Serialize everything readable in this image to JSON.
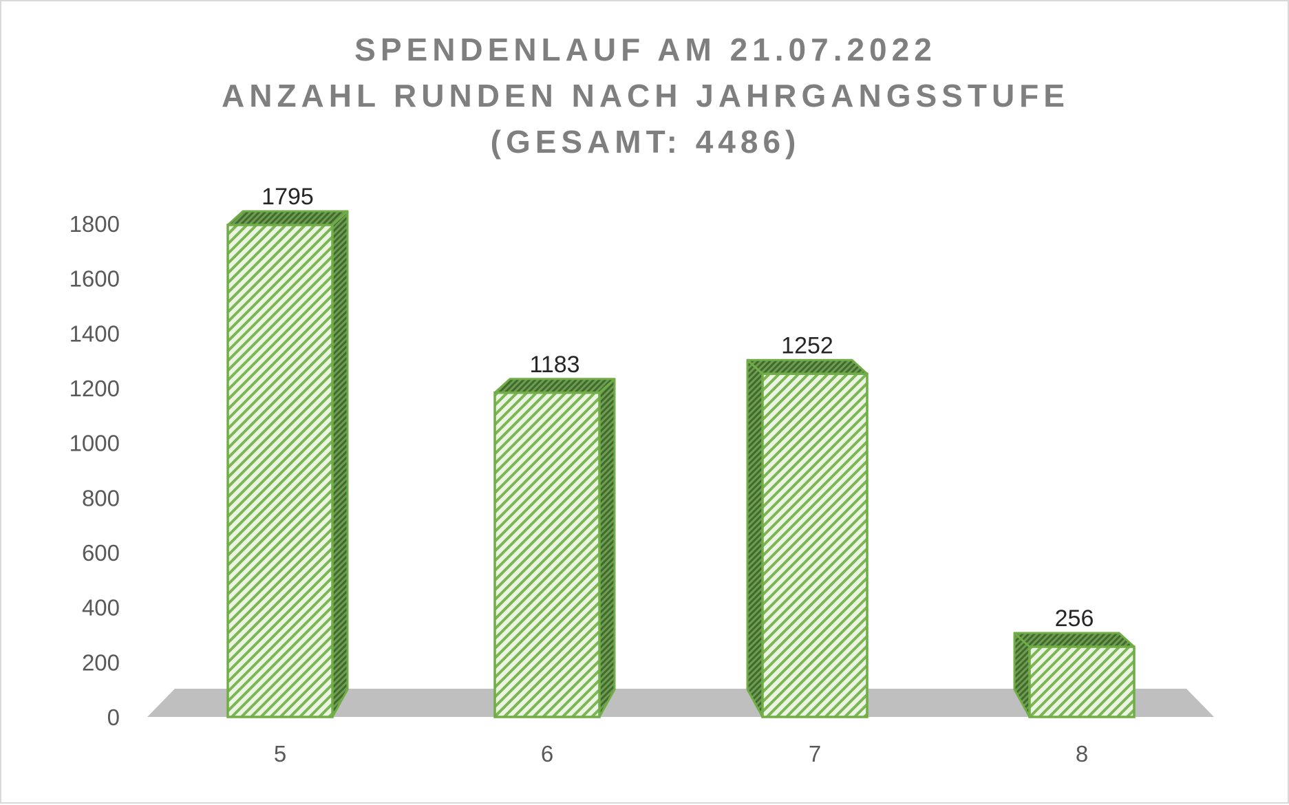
{
  "chart_data": {
    "type": "bar",
    "title_lines": [
      "SPENDENLAUF AM 21.07.2022",
      "ANZAHL RUNDEN NACH JAHRGANGSSTUFE",
      "(GESAMT: 4486)"
    ],
    "categories": [
      "5",
      "6",
      "7",
      "8"
    ],
    "values": [
      1795,
      1183,
      1252,
      256
    ],
    "data_labels": [
      "1795",
      "1183",
      "1252",
      "256"
    ],
    "y_ticks": [
      "0",
      "200",
      "400",
      "600",
      "800",
      "1000",
      "1200",
      "1400",
      "1600",
      "1800"
    ],
    "ylim": [
      0,
      1800
    ],
    "xlabel": "",
    "ylabel": "",
    "grid": false,
    "legend": "none",
    "style": "3d-column",
    "colors": {
      "bar_outline": "#70ad47",
      "bar_fill_light": "#e2f0d9",
      "bar_fill_hatch": "#70ad47",
      "bar_side_dark": "#548235",
      "floor": "#bfbfbf",
      "title": "#7f7f7f",
      "axis_text": "#595959",
      "data_label_text": "#262626"
    }
  }
}
